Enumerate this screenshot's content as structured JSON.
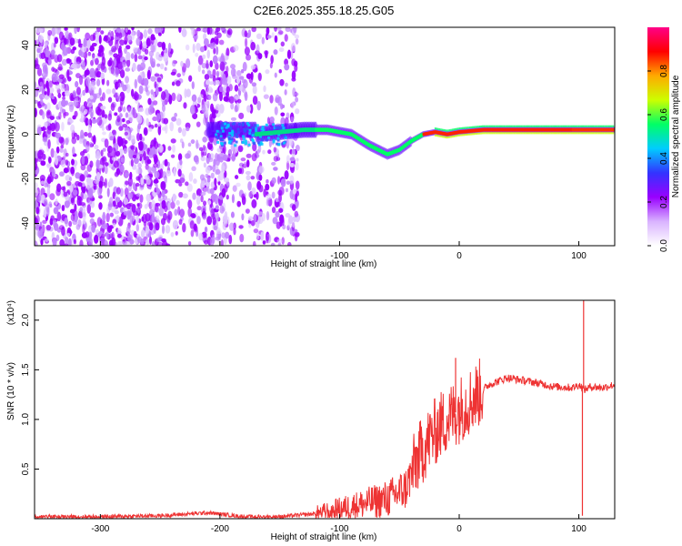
{
  "title": "C2E6.2025.355.18.25.G05",
  "chart_data": [
    {
      "type": "heatmap",
      "xlabel": "Height of straight line (km)",
      "ylabel": "Frequency (Hz)",
      "xlim": [
        -355,
        130
      ],
      "ylim": [
        -50,
        48
      ],
      "x_ticks": [
        -300,
        -200,
        -100,
        0,
        100
      ],
      "y_ticks": [
        -40,
        -20,
        0,
        20,
        40
      ],
      "colorbar": {
        "label": "Normalized spectral amplitude",
        "range": [
          0,
          1
        ],
        "ticks": [
          "0.0",
          "0.2",
          "0.4",
          "0.6",
          "0.8"
        ],
        "colors": [
          "#ffffff",
          "#d9b3ff",
          "#9900ff",
          "#3333ff",
          "#00ccff",
          "#00ff66",
          "#ccff00",
          "#ffaa00",
          "#ff0000",
          "#ff0088"
        ]
      },
      "ridge": {
        "x": [
          -170,
          -150,
          -130,
          -110,
          -90,
          -75,
          -60,
          -50,
          -40,
          -30,
          -20,
          -10,
          0,
          20,
          50,
          80,
          100,
          130
        ],
        "y": [
          0,
          1,
          2,
          2,
          0,
          -5,
          -9,
          -7,
          -3,
          0,
          1,
          0,
          1,
          2,
          2,
          2,
          2,
          2
        ]
      },
      "noise_region": {
        "x_start": -355,
        "x_end": -135,
        "color": "#9900ff"
      },
      "cluster": {
        "x_start": -190,
        "x_end": -200,
        "freq": 0,
        "color": "#00ccff"
      }
    },
    {
      "type": "line",
      "xlabel": "Height of straight line (km)",
      "ylabel": "SNR (10 * v/v)",
      "multiplier": "(x10⁴)",
      "xlim": [
        -355,
        130
      ],
      "ylim": [
        0,
        2.2
      ],
      "x_ticks": [
        -300,
        -200,
        -100,
        0,
        100
      ],
      "y_ticks": [
        0.5,
        1.0,
        1.5,
        2.0
      ],
      "color": "#ee3333",
      "series": [
        {
          "x": [
            -355,
            -300,
            -250,
            -210,
            -180,
            -150,
            -120,
            -100,
            -80,
            -60,
            -45,
            -35,
            -25,
            -15,
            -5,
            10,
            25,
            40,
            60,
            80,
            95,
            100,
            105,
            110,
            120,
            130
          ],
          "y": [
            0.02,
            0.02,
            0.03,
            0.06,
            0.02,
            0.02,
            0.05,
            0.1,
            0.15,
            0.2,
            0.3,
            0.6,
            0.8,
            0.95,
            1.05,
            1.2,
            1.35,
            1.42,
            1.38,
            1.33,
            1.32,
            1.35,
            1.3,
            1.33,
            1.32,
            1.35
          ]
        }
      ],
      "spikes": [
        {
          "x": -3,
          "y": 1.62
        },
        {
          "x": 104,
          "y": 2.2
        },
        {
          "x": 103,
          "y": 0.03
        }
      ]
    }
  ]
}
